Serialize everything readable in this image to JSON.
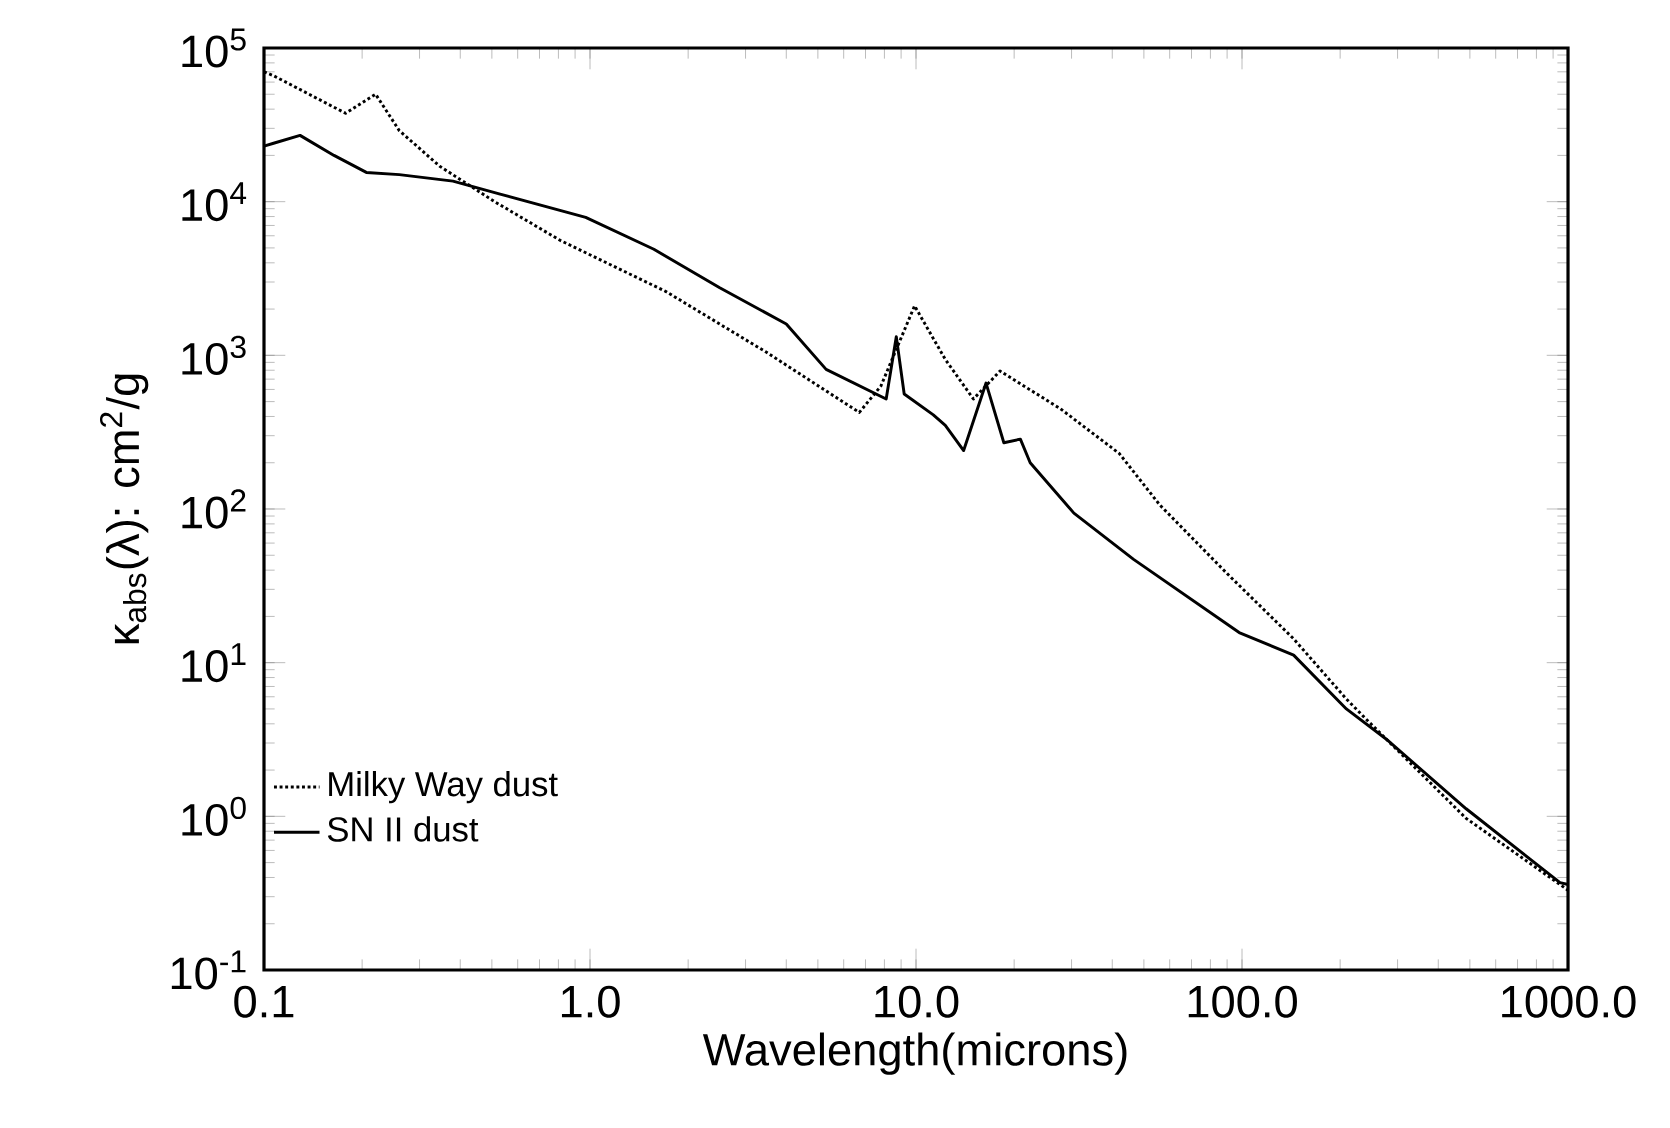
{
  "chart_data": {
    "type": "line",
    "xlabel": "Wavelength(microns)",
    "ylabel": "κ$_{abs}$(λ): cm$^{2}$/g",
    "log": "xy",
    "legend": "bottom left",
    "xlim": [
      0.1,
      1000
    ],
    "ylim": [
      0.1,
      100000
    ],
    "xticks": [
      0.1,
      {
        "value": 1,
        "label": "1.0"
      },
      {
        "value": 10,
        "label": "10.0"
      },
      {
        "value": 100,
        "label": "100.0"
      },
      {
        "value": 1000,
        "label": "1000.0"
      }
    ],
    "yticks": [
      {
        "value": 0.1,
        "label": "10$^{-1}$"
      },
      {
        "value": 1,
        "label": "10$^{0}$"
      },
      {
        "value": 10,
        "label": "10$^{1}$"
      },
      {
        "value": 100,
        "label": "10$^{2}$"
      },
      {
        "value": 1000,
        "label": "10$^{3}$"
      },
      {
        "value": 10000,
        "label": "10$^{4}$"
      },
      {
        "value": 100000,
        "label": "10$^{5}$"
      }
    ],
    "series": [
      {
        "name": "Milky Way dust",
        "color": "#000000",
        "line_style": "dotted",
        "x": [
          0.1,
          0.107,
          0.178,
          0.22,
          0.26,
          0.346,
          0.51,
          0.81,
          1.71,
          3.47,
          6.7,
          7.8,
          9.9,
          12.3,
          15.0,
          18.1,
          27.7,
          42,
          56,
          90,
          144,
          209,
          240,
          487,
          945,
          1000
        ],
        "values": [
          70000,
          66000,
          37600,
          50000,
          29000,
          17000,
          10000,
          5600,
          2600,
          1050,
          425,
          630,
          2100,
          940,
          520,
          790,
          450,
          230,
          106,
          38,
          14.3,
          5.8,
          4.3,
          0.97,
          0.36,
          0.33
        ]
      },
      {
        "name": "SN II dust",
        "color": "#000000",
        "line_style": "solid",
        "x": [
          0.1,
          0.107,
          0.129,
          0.164,
          0.206,
          0.26,
          0.38,
          0.53,
          0.97,
          1.57,
          2.5,
          4.0,
          5.3,
          8.1,
          8.7,
          9.2,
          11.3,
          12.3,
          14.0,
          16.4,
          18.6,
          20.9,
          22.4,
          30.5,
          46.5,
          98,
          144,
          209,
          276,
          487,
          945,
          1000
        ],
        "values": [
          23000,
          24000,
          27000,
          20000,
          15500,
          15000,
          13600,
          11200,
          7900,
          4900,
          2750,
          1600,
          810,
          520,
          1320,
          560,
          410,
          350,
          240,
          660,
          270,
          285,
          200,
          94,
          47,
          15.7,
          11.2,
          5.0,
          3.2,
          1.12,
          0.37,
          0.36
        ]
      }
    ]
  }
}
